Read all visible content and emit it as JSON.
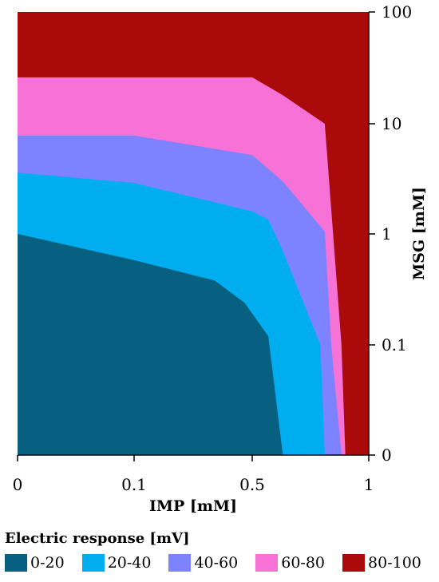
{
  "chart_data": {
    "type": "area",
    "x_ticks": [
      "0",
      "0.1",
      "0.5",
      "1"
    ],
    "y_ticks": [
      "0",
      "0.1",
      "1",
      "10",
      "100"
    ],
    "xlabel": "IMP [mM]",
    "ylabel": "MSG [mM]",
    "x_scale": "log-like (0, 0.1, 0.5, 1)",
    "y_scale": "log-like (0, 0.1, 1, 10, 100)",
    "ylim": [
      0,
      100
    ],
    "xlim": [
      0,
      1
    ],
    "y_axis_side": "right",
    "legend_title": "Electric response  [mV]",
    "legend_position": "bottom",
    "series": [
      {
        "name": "0-20",
        "color": "#07607f",
        "boundary": [
          {
            "x": 0,
            "y": 1.0
          },
          {
            "x": 0.1,
            "y": 0.58
          },
          {
            "x": 0.3,
            "y": 0.38
          },
          {
            "x": 0.45,
            "y": 0.24
          },
          {
            "x": 0.55,
            "y": 0.12
          },
          {
            "x": 0.6,
            "y": 0.0
          }
        ]
      },
      {
        "name": "20-40",
        "color": "#00aeef",
        "boundary": [
          {
            "x": 0,
            "y": 3.6
          },
          {
            "x": 0.1,
            "y": 2.9
          },
          {
            "x": 0.5,
            "y": 1.6
          },
          {
            "x": 0.55,
            "y": 1.35
          },
          {
            "x": 0.6,
            "y": 0.7
          },
          {
            "x": 0.75,
            "y": 0.1
          },
          {
            "x": 0.77,
            "y": 0.0
          }
        ]
      },
      {
        "name": "40-60",
        "color": "#7d82ff",
        "boundary": [
          {
            "x": 0,
            "y": 7.8
          },
          {
            "x": 0.1,
            "y": 7.8
          },
          {
            "x": 0.5,
            "y": 5.2
          },
          {
            "x": 0.6,
            "y": 3.0
          },
          {
            "x": 0.77,
            "y": 1.05
          },
          {
            "x": 0.8,
            "y": 0.1
          },
          {
            "x": 0.85,
            "y": 0.0
          }
        ]
      },
      {
        "name": "60-80",
        "color": "#f772d6",
        "boundary": [
          {
            "x": 0,
            "y": 26
          },
          {
            "x": 0.5,
            "y": 26
          },
          {
            "x": 0.6,
            "y": 18
          },
          {
            "x": 0.77,
            "y": 10
          },
          {
            "x": 0.85,
            "y": 0.1
          },
          {
            "x": 0.87,
            "y": 0.0
          }
        ]
      },
      {
        "name": "80-100",
        "color": "#aa0a0a",
        "boundary": [
          {
            "x": 0,
            "y": 100
          },
          {
            "x": 1,
            "y": 100
          }
        ]
      }
    ]
  }
}
